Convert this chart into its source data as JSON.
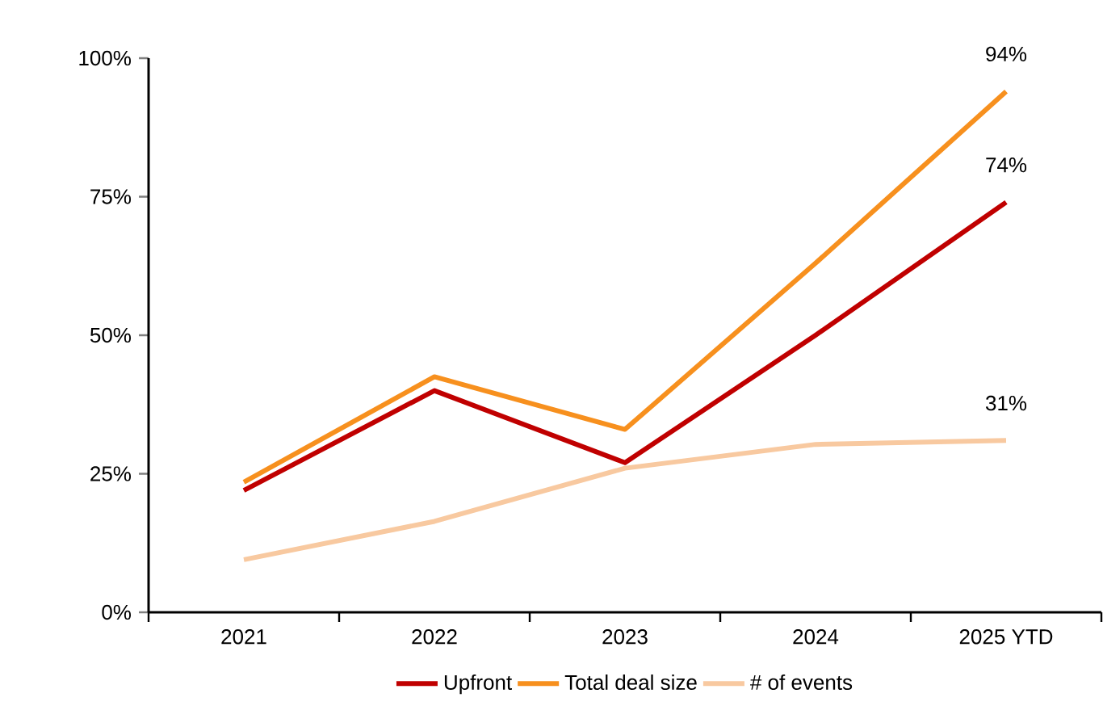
{
  "chart_data": {
    "type": "line",
    "categories": [
      "2021",
      "2022",
      "2023",
      "2024",
      "2025 YTD"
    ],
    "series": [
      {
        "name": "Upfront",
        "color": "#c00000",
        "values": [
          22,
          40,
          27,
          50,
          74
        ],
        "value_labels": [
          null,
          null,
          null,
          null,
          "74%"
        ]
      },
      {
        "name": "Total deal size",
        "color": "#f7901e",
        "values": [
          23.5,
          42.5,
          33,
          63,
          94
        ],
        "value_labels": [
          null,
          null,
          null,
          null,
          "94%"
        ]
      },
      {
        "name": "# of events",
        "color": "#f8c9a0",
        "values": [
          9.5,
          16.4,
          26,
          30.3,
          31
        ],
        "value_labels": [
          null,
          null,
          null,
          null,
          "31%"
        ]
      }
    ],
    "ylim": [
      0,
      100
    ],
    "yticks": [
      {
        "value": 0,
        "label": "0%"
      },
      {
        "value": 25,
        "label": "25%"
      },
      {
        "value": 50,
        "label": "50%"
      },
      {
        "value": 75,
        "label": "75%"
      },
      {
        "value": 100,
        "label": "100%"
      }
    ],
    "grid": false,
    "legend": "bottom",
    "marker": "none",
    "line_style": "solid"
  }
}
